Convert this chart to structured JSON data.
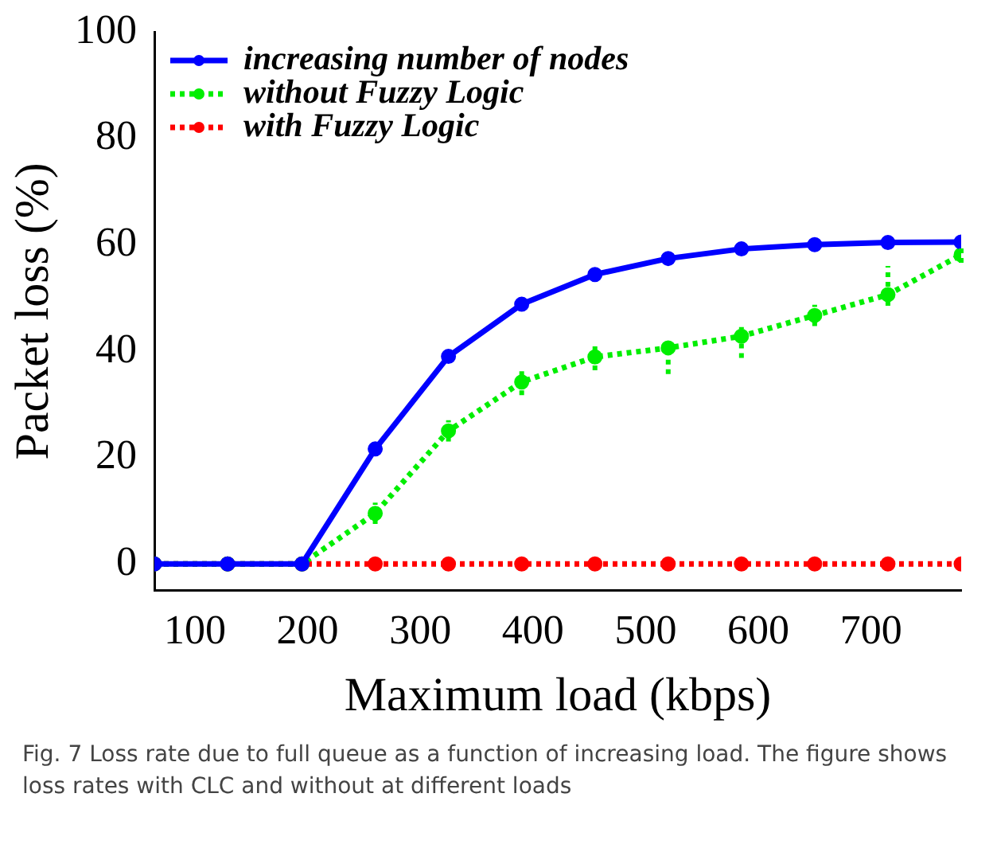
{
  "chart_data": {
    "type": "line",
    "xlabel": "Maximum load (kbps)",
    "ylabel": "Packet loss (%)",
    "x": [
      64,
      129,
      195,
      260,
      325,
      390,
      455,
      520,
      585,
      650,
      715,
      780
    ],
    "series": [
      {
        "name": "increasing number of nodes",
        "color": "#0000ff",
        "line_style": "solid",
        "values": [
          0,
          0,
          0,
          21.6,
          39,
          48.8,
          54.4,
          57.4,
          59.2,
          60,
          60.4,
          60.5
        ]
      },
      {
        "name": "without Fuzzy Logic",
        "color": "#00ee00",
        "line_style": "dotted",
        "values": [
          0,
          0,
          0,
          9.5,
          25,
          34.2,
          38.9,
          40.6,
          42.8,
          46.7,
          50.6,
          58.1
        ],
        "errors": [
          null,
          null,
          null,
          2,
          2,
          2.5,
          2.5,
          [
            35.7,
            41.5
          ],
          [
            38.7,
            44.5
          ],
          2,
          [
            48.5,
            56
          ],
          1.5
        ]
      },
      {
        "name": "with Fuzzy Logic",
        "color": "#ff0000",
        "line_style": "dotted",
        "values": [
          0,
          0,
          0,
          0,
          0,
          0,
          0,
          0,
          0,
          0,
          0,
          0
        ]
      }
    ],
    "xlim": [
      64,
      780
    ],
    "xticks": [
      100,
      200,
      300,
      400,
      500,
      600,
      700
    ],
    "ylim": [
      -5,
      100
    ],
    "yticks": [
      0,
      20,
      40,
      60,
      80,
      100
    ],
    "marker": "circle",
    "legend": "top left",
    "annotations": [
      "Fig. 7 Loss rate due to full queue as a function of increasing load. The figure shows loss rates with CLC and without at different loads"
    ]
  }
}
